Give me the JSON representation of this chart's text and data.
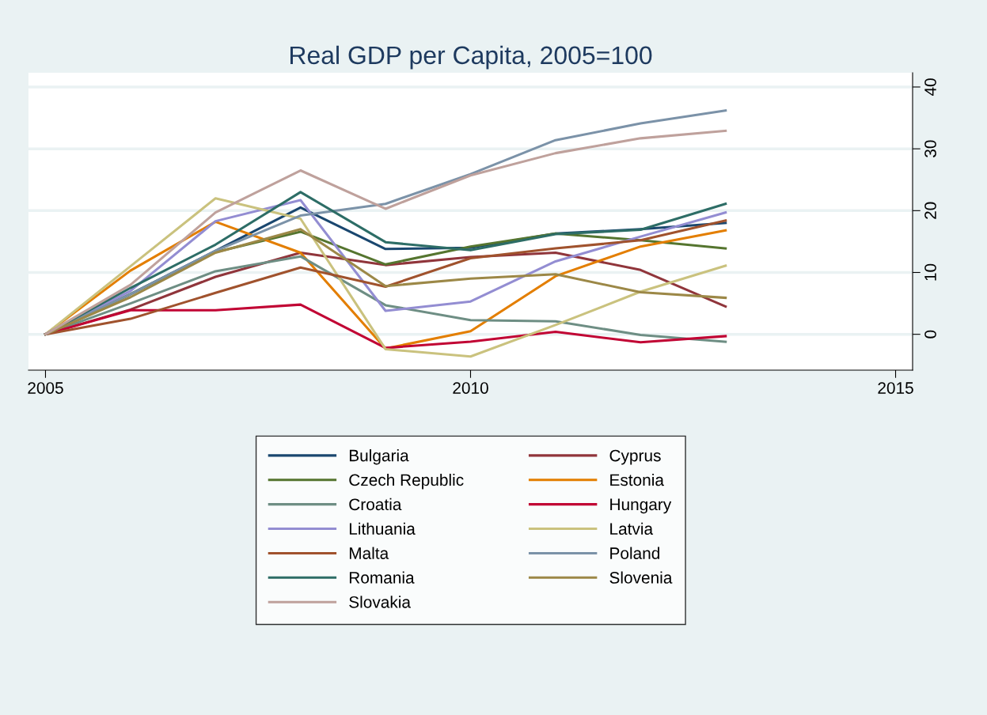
{
  "chart_data": {
    "type": "line",
    "title": "Real GDP per Capita, 2005=100",
    "x": [
      2005,
      2006,
      2007,
      2008,
      2009,
      2010,
      2011,
      2012,
      2013
    ],
    "series": [
      {
        "name": "Bulgaria",
        "color": "#1a476f",
        "values": [
          0,
          6.5,
          13.5,
          20.5,
          13.8,
          14.0,
          16.3,
          17.0,
          18.0
        ]
      },
      {
        "name": "Cyprus",
        "color": "#90353b",
        "values": [
          0,
          4,
          9.3,
          13.2,
          11.2,
          12.5,
          13.2,
          10.4,
          4.5
        ]
      },
      {
        "name": "Czech Republic",
        "color": "#55752f",
        "values": [
          0,
          6.5,
          13.3,
          16.6,
          11.3,
          14.2,
          16.3,
          15.2,
          13.9
        ]
      },
      {
        "name": "Estonia",
        "color": "#e37e00",
        "values": [
          0,
          10.3,
          18.2,
          13.2,
          -2.3,
          0.5,
          9.4,
          14.2,
          16.8
        ]
      },
      {
        "name": "Croatia",
        "color": "#6e8e84",
        "values": [
          0,
          5,
          10.2,
          12.6,
          4.7,
          2.3,
          2.1,
          -0.1,
          -1.2
        ]
      },
      {
        "name": "Hungary",
        "color": "#c10534",
        "values": [
          0,
          3.9,
          3.9,
          4.8,
          -2.2,
          -1.2,
          0.4,
          -1.3,
          -0.3
        ]
      },
      {
        "name": "Lithuania",
        "color": "#938dd2",
        "values": [
          0,
          7,
          18.3,
          21.7,
          3.8,
          5.3,
          11.8,
          15.8,
          19.7
        ]
      },
      {
        "name": "Latvia",
        "color": "#cac27e",
        "values": [
          0,
          11,
          22.0,
          18.7,
          -2.4,
          -3.6,
          1.5,
          6.9,
          11.1
        ]
      },
      {
        "name": "Malta",
        "color": "#a0522d",
        "values": [
          0,
          2.5,
          6.7,
          10.8,
          7.7,
          12.3,
          13.9,
          15.2,
          18.4
        ]
      },
      {
        "name": "Poland",
        "color": "#7b92a8",
        "values": [
          0,
          6.5,
          13.5,
          19.2,
          21.1,
          25.9,
          31.4,
          34.1,
          36.2
        ]
      },
      {
        "name": "Romania",
        "color": "#2d6d66",
        "values": [
          0,
          7.5,
          14.5,
          23.0,
          14.9,
          13.6,
          16.2,
          16.9,
          21.1
        ]
      },
      {
        "name": "Slovenia",
        "color": "#9c8847",
        "values": [
          0,
          6,
          13.2,
          17.0,
          7.8,
          9.0,
          9.7,
          6.8,
          5.9
        ]
      },
      {
        "name": "Slovakia",
        "color": "#bfa19c",
        "values": [
          0,
          8,
          19.7,
          26.5,
          20.3,
          25.7,
          29.3,
          31.7,
          32.9
        ]
      }
    ],
    "xlim": [
      2004.8,
      2015.2
    ],
    "xticks": [
      2005,
      2010,
      2015
    ],
    "ylim": [
      -5.8,
      42.3
    ],
    "yticks": [
      0,
      10,
      20,
      30,
      40
    ],
    "grid": "y",
    "legend": "bottom",
    "marker": "none",
    "line_style": "solid"
  }
}
